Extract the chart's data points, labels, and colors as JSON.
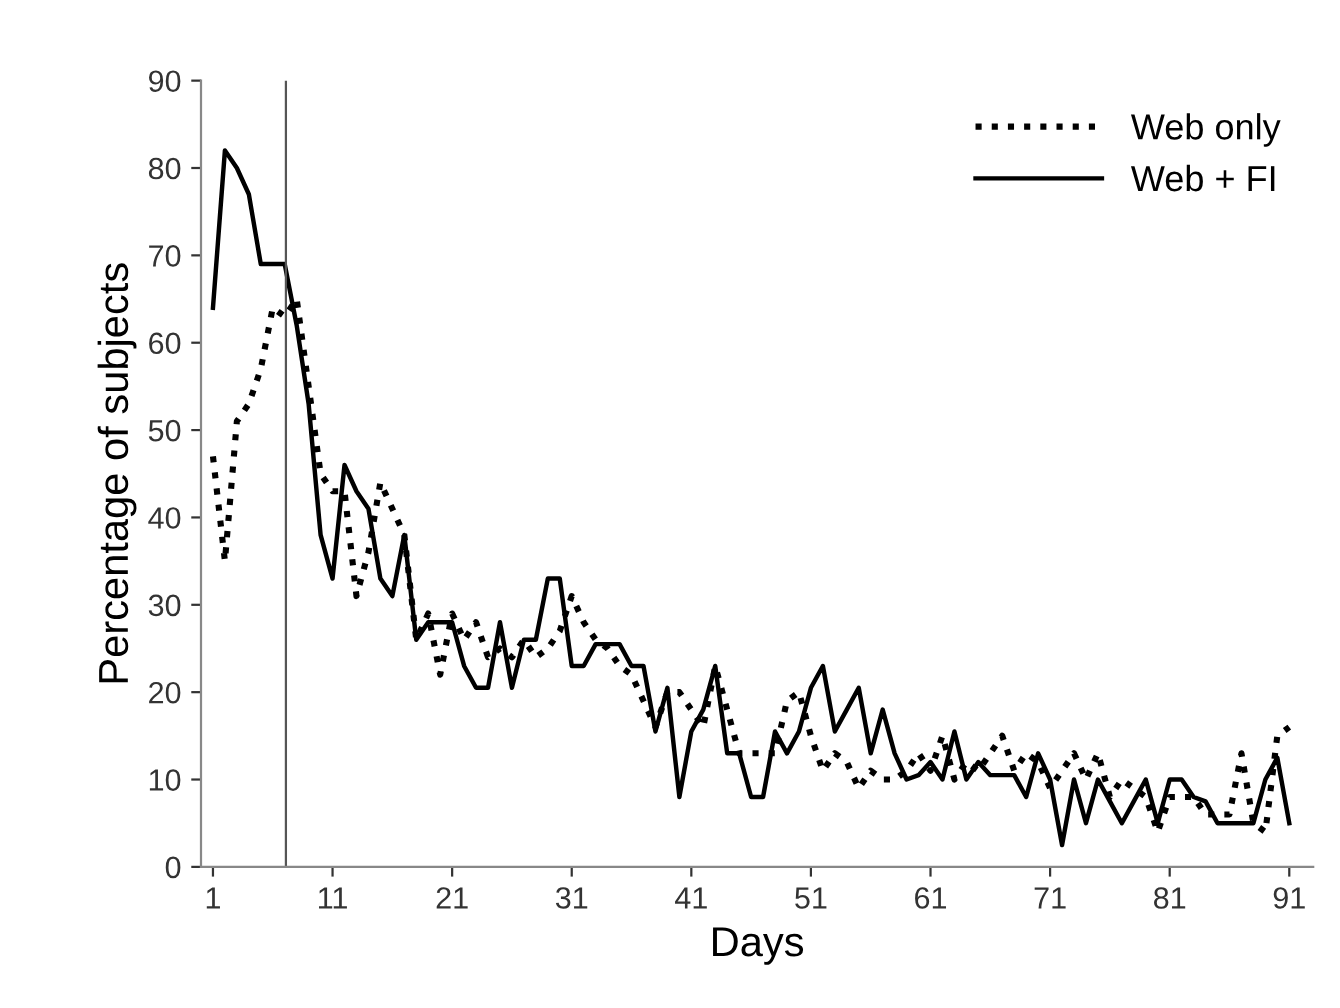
{
  "chart_data": {
    "type": "line",
    "xlabel": "Days",
    "ylabel": "Percentage of subjects",
    "x": [
      1,
      2,
      3,
      4,
      5,
      6,
      7,
      8,
      9,
      10,
      11,
      12,
      13,
      14,
      15,
      16,
      17,
      18,
      19,
      20,
      21,
      22,
      23,
      24,
      25,
      26,
      27,
      28,
      29,
      30,
      31,
      32,
      33,
      34,
      35,
      36,
      37,
      38,
      39,
      40,
      41,
      42,
      43,
      44,
      45,
      46,
      47,
      48,
      49,
      50,
      51,
      52,
      53,
      54,
      55,
      56,
      57,
      58,
      59,
      60,
      61,
      62,
      63,
      64,
      65,
      66,
      67,
      68,
      69,
      70,
      71,
      72,
      73,
      74,
      75,
      76,
      77,
      78,
      79,
      80,
      81,
      82,
      83,
      84,
      85,
      86,
      87,
      88,
      89,
      90,
      91
    ],
    "series": [
      {
        "name": "Web only",
        "color": "#000000",
        "line_style": "dotted",
        "values": [
          47,
          35,
          51,
          53,
          57,
          64,
          63,
          65,
          55,
          45,
          43,
          43,
          31,
          36,
          44,
          41,
          38,
          26,
          29,
          22,
          29,
          26,
          28,
          24,
          25,
          24,
          26,
          24,
          25,
          27,
          31,
          28,
          26,
          25,
          23,
          22,
          19,
          16,
          20,
          20,
          18,
          16,
          23,
          18,
          13,
          13,
          13,
          13,
          19,
          20,
          15,
          11,
          13,
          12,
          9,
          11,
          10,
          10,
          11,
          13,
          11,
          15,
          10,
          12,
          11,
          13,
          15,
          11,
          13,
          12,
          9,
          11,
          13,
          10,
          13,
          8,
          10,
          9,
          8,
          4,
          8,
          8,
          8,
          6,
          6,
          6,
          13,
          5,
          4,
          15,
          16
        ]
      },
      {
        "name": "Web + FI",
        "color": "#000000",
        "line_style": "solid",
        "values": [
          64,
          82,
          80,
          77,
          69,
          69,
          69,
          62,
          53,
          38,
          33,
          46,
          43,
          41,
          33,
          31,
          38,
          26,
          28,
          28,
          28,
          23,
          20.5,
          20.5,
          28,
          20.5,
          26,
          26,
          33,
          33,
          23,
          23,
          25.5,
          25.5,
          25.5,
          23,
          23,
          15.5,
          20.5,
          8,
          15.5,
          18,
          23,
          13,
          13,
          8,
          8,
          15.5,
          13,
          15.5,
          20.5,
          23,
          15.5,
          18,
          20.5,
          13,
          18,
          13,
          10,
          10.5,
          12,
          10,
          15.5,
          10,
          12,
          10.5,
          10.5,
          10.5,
          8,
          13,
          10,
          2.5,
          10,
          5,
          10,
          7.5,
          5,
          7.5,
          10,
          5,
          10,
          10,
          8,
          7.5,
          5,
          5,
          5,
          5,
          10,
          12.5,
          5
        ]
      }
    ],
    "xlim": [
      0,
      93
    ],
    "xticks": [
      1,
      11,
      21,
      31,
      41,
      51,
      61,
      71,
      81,
      91
    ],
    "ylim": [
      0,
      90
    ],
    "yticks": [
      0,
      10,
      20,
      30,
      40,
      50,
      60,
      70,
      80,
      90
    ],
    "ref_lines": [
      {
        "axis": "x",
        "value": 7.1,
        "color": "#555555"
      }
    ],
    "grid": false,
    "legend": "top right",
    "marker": "none"
  }
}
